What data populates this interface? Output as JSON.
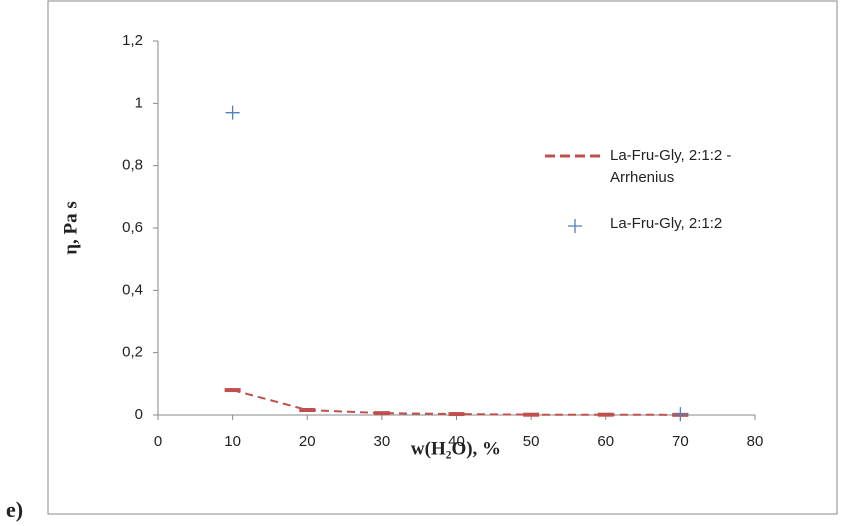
{
  "chart_data": {
    "type": "line",
    "panel_label": "e)",
    "x_label": "w(H₂O), %",
    "y_label": "η, Pa s",
    "xlim": [
      0,
      80
    ],
    "xticks": [
      0,
      10,
      20,
      30,
      40,
      50,
      60,
      70,
      80
    ],
    "ylim": [
      0,
      1.2
    ],
    "yticks": [
      0,
      {
        "value": 0.2,
        "label": "0,2"
      },
      {
        "value": 0.4,
        "label": "0,4"
      },
      {
        "value": 0.6,
        "label": "0,6"
      },
      {
        "value": 0.8,
        "label": "0,8"
      },
      1,
      {
        "value": 1.2,
        "label": "1,2"
      }
    ],
    "grid": false,
    "legend": "right",
    "series": [
      {
        "name": "La-Fru-Gly, 2:1:2 - Arrhenius",
        "color": "#c0504d",
        "type": "line",
        "x": [
          10,
          20,
          30,
          40,
          50,
          60,
          70
        ],
        "values": [
          0.08,
          0.016,
          0.006,
          0.003,
          0.001,
          0.001,
          0.0005
        ]
      },
      {
        "name": "La-Fru-Gly, 2:1:2",
        "color": "#4f81bd",
        "type": "scatter",
        "x": [
          10,
          70
        ],
        "values": [
          0.97,
          0.003
        ]
      }
    ]
  }
}
